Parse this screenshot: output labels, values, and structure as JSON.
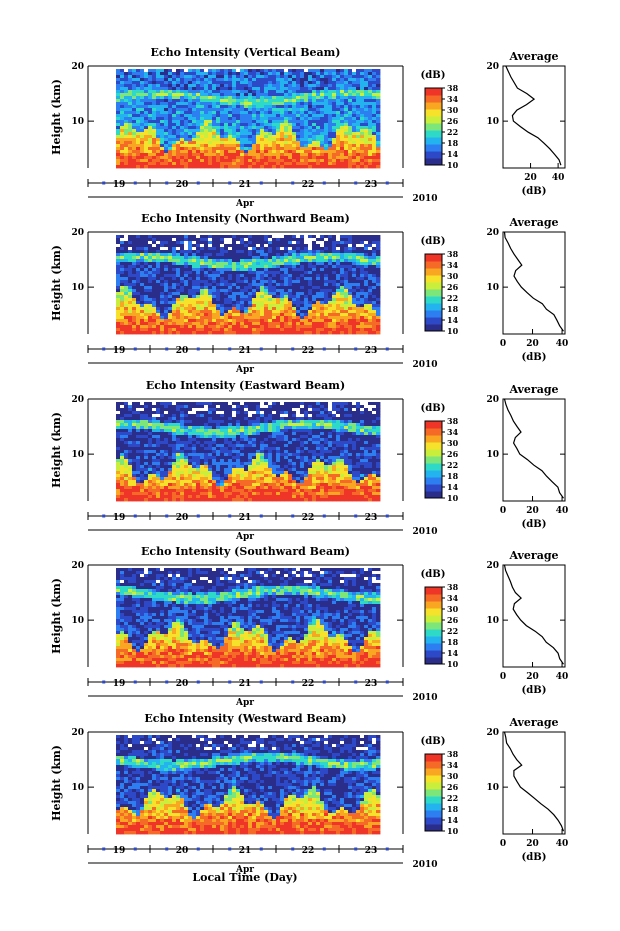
{
  "chart_data": [
    {
      "type": "heatmap",
      "title": "Echo Intensity (Vertical Beam)",
      "ylabel": "Height (km)",
      "ylim": [
        1.5,
        20
      ],
      "yticks": [
        "20",
        "10"
      ],
      "xticks": [
        "19",
        "20",
        "21",
        "22",
        "23"
      ],
      "xlabel_month": "Apr",
      "xlabel_year": "2010",
      "colorbar": {
        "unit": "(dB)",
        "ticks": [
          "38",
          "34",
          "30",
          "26",
          "22",
          "18",
          "14",
          "10"
        ],
        "range": [
          10,
          38
        ]
      },
      "average_profile": {
        "title": "Average",
        "xlabel": "(dB)",
        "xticks": [
          "20",
          "40"
        ],
        "xlim": [
          0,
          45
        ],
        "height_km": [
          20,
          18,
          16,
          15,
          14,
          13,
          12,
          11,
          10,
          9,
          8,
          7,
          6,
          5,
          4,
          3,
          2
        ],
        "value_db": [
          2,
          6,
          10,
          17,
          22,
          17,
          10,
          7,
          8,
          13,
          19,
          25,
          30,
          34,
          37,
          40,
          42
        ]
      }
    },
    {
      "type": "heatmap",
      "title": "Echo Intensity (Northward Beam)",
      "ylabel": "Height (km)",
      "ylim": [
        1.5,
        20
      ],
      "yticks": [
        "20",
        "10"
      ],
      "xticks": [
        "19",
        "20",
        "21",
        "22",
        "23"
      ],
      "xlabel_month": "Apr",
      "xlabel_year": "2010",
      "colorbar": {
        "unit": "(dB)",
        "ticks": [
          "38",
          "34",
          "30",
          "26",
          "22",
          "18",
          "14",
          "10"
        ],
        "range": [
          10,
          38
        ]
      },
      "average_profile": {
        "title": "Average",
        "xlabel": "(dB)",
        "xticks": [
          "0",
          "20",
          "40"
        ],
        "xlim": [
          0,
          42
        ],
        "height_km": [
          20,
          19,
          18,
          17,
          16,
          15,
          14,
          13,
          12,
          11,
          10,
          9,
          8,
          7,
          6,
          5,
          4,
          3,
          2
        ],
        "value_db": [
          1,
          2,
          3,
          5,
          7,
          10,
          12,
          8,
          7,
          9,
          12,
          16,
          21,
          26,
          30,
          34,
          37,
          39,
          41
        ]
      }
    },
    {
      "type": "heatmap",
      "title": "Echo Intensity (Eastward Beam)",
      "ylabel": "Height (km)",
      "ylim": [
        1.5,
        20
      ],
      "yticks": [
        "20",
        "10"
      ],
      "xticks": [
        "19",
        "20",
        "21",
        "22",
        "23"
      ],
      "xlabel_month": "Apr",
      "xlabel_year": "2010",
      "colorbar": {
        "unit": "(dB)",
        "ticks": [
          "38",
          "34",
          "30",
          "26",
          "22",
          "18",
          "14",
          "10"
        ],
        "range": [
          10,
          38
        ]
      },
      "average_profile": {
        "title": "Average",
        "xlabel": "(dB)",
        "xticks": [
          "0",
          "20",
          "40"
        ],
        "xlim": [
          0,
          42
        ],
        "height_km": [
          20,
          19,
          18,
          17,
          16,
          15,
          14,
          13,
          12,
          11,
          10,
          9,
          8,
          7,
          6,
          5,
          4,
          3,
          2
        ],
        "value_db": [
          1,
          2,
          3,
          5,
          7,
          9,
          12,
          8,
          7,
          9,
          12,
          16,
          21,
          26,
          30,
          34,
          37,
          39,
          41
        ]
      }
    },
    {
      "type": "heatmap",
      "title": "Echo Intensity (Southward Beam)",
      "ylabel": "Height (km)",
      "ylim": [
        1.5,
        20
      ],
      "yticks": [
        "20",
        "10"
      ],
      "xticks": [
        "19",
        "20",
        "21",
        "22",
        "23"
      ],
      "xlabel_month": "Apr",
      "xlabel_year": "2010",
      "colorbar": {
        "unit": "(dB)",
        "ticks": [
          "38",
          "34",
          "30",
          "26",
          "22",
          "18",
          "14",
          "10"
        ],
        "range": [
          10,
          38
        ]
      },
      "average_profile": {
        "title": "Average",
        "xlabel": "(dB)",
        "xticks": [
          "0",
          "20",
          "40"
        ],
        "xlim": [
          0,
          42
        ],
        "height_km": [
          20,
          19,
          18,
          17,
          16,
          15,
          14,
          13,
          12,
          11,
          10,
          9,
          8,
          7,
          6,
          5,
          4,
          3,
          2
        ],
        "value_db": [
          1,
          2,
          3,
          5,
          7,
          9,
          12,
          8,
          7,
          9,
          12,
          16,
          21,
          26,
          30,
          34,
          37,
          39,
          41
        ]
      }
    },
    {
      "type": "heatmap",
      "title": "Echo Intensity (Westward Beam)",
      "ylabel": "Height (km)",
      "ylim": [
        1.5,
        20
      ],
      "yticks": [
        "20",
        "10"
      ],
      "xticks": [
        "19",
        "20",
        "21",
        "22",
        "23"
      ],
      "xlabel_month": "Apr",
      "xlabel_year": "2010",
      "colorbar": {
        "unit": "(dB)",
        "ticks": [
          "38",
          "34",
          "30",
          "26",
          "22",
          "18",
          "14",
          "10"
        ],
        "range": [
          10,
          38
        ]
      },
      "average_profile": {
        "title": "Average",
        "xlabel": "(dB)",
        "xticks": [
          "0",
          "20",
          "40"
        ],
        "xlim": [
          0,
          42
        ],
        "height_km": [
          20,
          19,
          18,
          17,
          16,
          15,
          14,
          13,
          12,
          11,
          10,
          9,
          8,
          7,
          6,
          5,
          4,
          3,
          2
        ],
        "value_db": [
          1,
          2,
          3,
          5,
          7,
          9,
          12,
          8,
          7,
          9,
          12,
          16,
          21,
          26,
          30,
          34,
          37,
          39,
          41
        ]
      }
    }
  ],
  "footer": {
    "xlabel": "Local Time (Day)"
  },
  "colormap": [
    "#2a2d8a",
    "#2e49c8",
    "#2d7ef0",
    "#23b4f0",
    "#2fd9c8",
    "#7ce67a",
    "#c9ee3c",
    "#f6e22a",
    "#f9a623",
    "#f46a26",
    "#ee3527"
  ]
}
